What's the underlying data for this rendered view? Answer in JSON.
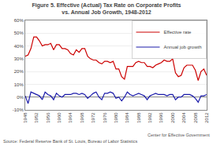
{
  "chart_data": {
    "type": "line",
    "title": "Figure 5. Effective (Actual) Tax Rate on Corporate Profits",
    "subtitle": "vs. Annual Job Growth, 1948-2012",
    "x": [
      1948,
      1949,
      1950,
      1951,
      1952,
      1953,
      1954,
      1955,
      1956,
      1957,
      1958,
      1959,
      1960,
      1961,
      1962,
      1963,
      1964,
      1965,
      1966,
      1967,
      1968,
      1969,
      1970,
      1971,
      1972,
      1973,
      1974,
      1975,
      1976,
      1977,
      1978,
      1979,
      1980,
      1981,
      1982,
      1983,
      1984,
      1985,
      1986,
      1987,
      1988,
      1989,
      1990,
      1991,
      1992,
      1993,
      1994,
      1995,
      1996,
      1997,
      1998,
      1999,
      2000,
      2001,
      2002,
      2003,
      2004,
      2005,
      2006,
      2007,
      2008,
      2009,
      2010,
      2011,
      2012
    ],
    "series": [
      {
        "name": "Effective rate",
        "color": "#cc0000",
        "values": [
          32,
          33,
          38,
          47,
          47,
          44,
          40,
          41,
          41,
          42,
          37,
          41,
          41,
          38,
          38,
          37,
          34,
          33,
          37,
          35,
          38,
          38,
          32,
          30,
          29,
          29,
          27,
          26,
          28,
          28,
          27,
          28,
          22,
          22,
          16,
          14,
          24,
          24,
          24,
          27,
          28,
          27,
          27,
          24,
          24,
          23,
          25,
          26,
          27,
          29,
          28,
          28,
          30,
          19,
          16,
          17,
          23,
          25,
          25,
          25,
          21,
          13,
          20,
          22,
          17
        ]
      },
      {
        "name": "Annual job growth",
        "color": "#1a1aaa",
        "values": [
          1,
          -5,
          4,
          3,
          2,
          1,
          -2,
          4,
          2,
          1,
          -2,
          3,
          1,
          0,
          2,
          2,
          2,
          3,
          3,
          2,
          3,
          2,
          -1,
          1,
          3,
          4,
          0,
          -2,
          3,
          3,
          4,
          3,
          -1,
          0,
          -3,
          0,
          4,
          2,
          1,
          2,
          3,
          2,
          1,
          -2,
          1,
          2,
          3,
          2,
          2,
          2,
          1,
          2,
          2,
          -2,
          0,
          0,
          2,
          2,
          2,
          1,
          -1,
          -4,
          1,
          1,
          2
        ]
      }
    ],
    "xlim": [
      1948,
      2012
    ],
    "xticks": [
      1948,
      1952,
      1956,
      1960,
      1964,
      1968,
      1972,
      1976,
      1980,
      1984,
      1988,
      1992,
      1996,
      2000,
      2004,
      2008,
      2012
    ],
    "ylim": [
      -10,
      60
    ],
    "yticks": [
      {
        "value": -10,
        "label": "-10%"
      },
      {
        "value": 0,
        "label": "0%"
      },
      {
        "value": 10,
        "label": "10%"
      },
      {
        "value": 20,
        "label": "20%"
      },
      {
        "value": 30,
        "label": "30%"
      },
      {
        "value": 40,
        "label": "40%"
      },
      {
        "value": 50,
        "label": "50%"
      },
      {
        "value": 60,
        "label": "60%"
      }
    ],
    "grid": "y",
    "legend": "upper right",
    "annotations": [
      "Source: Federal Reserve Bank of St. Louis, Bureau of Labor Statistics",
      "Center for Effective Government"
    ]
  }
}
